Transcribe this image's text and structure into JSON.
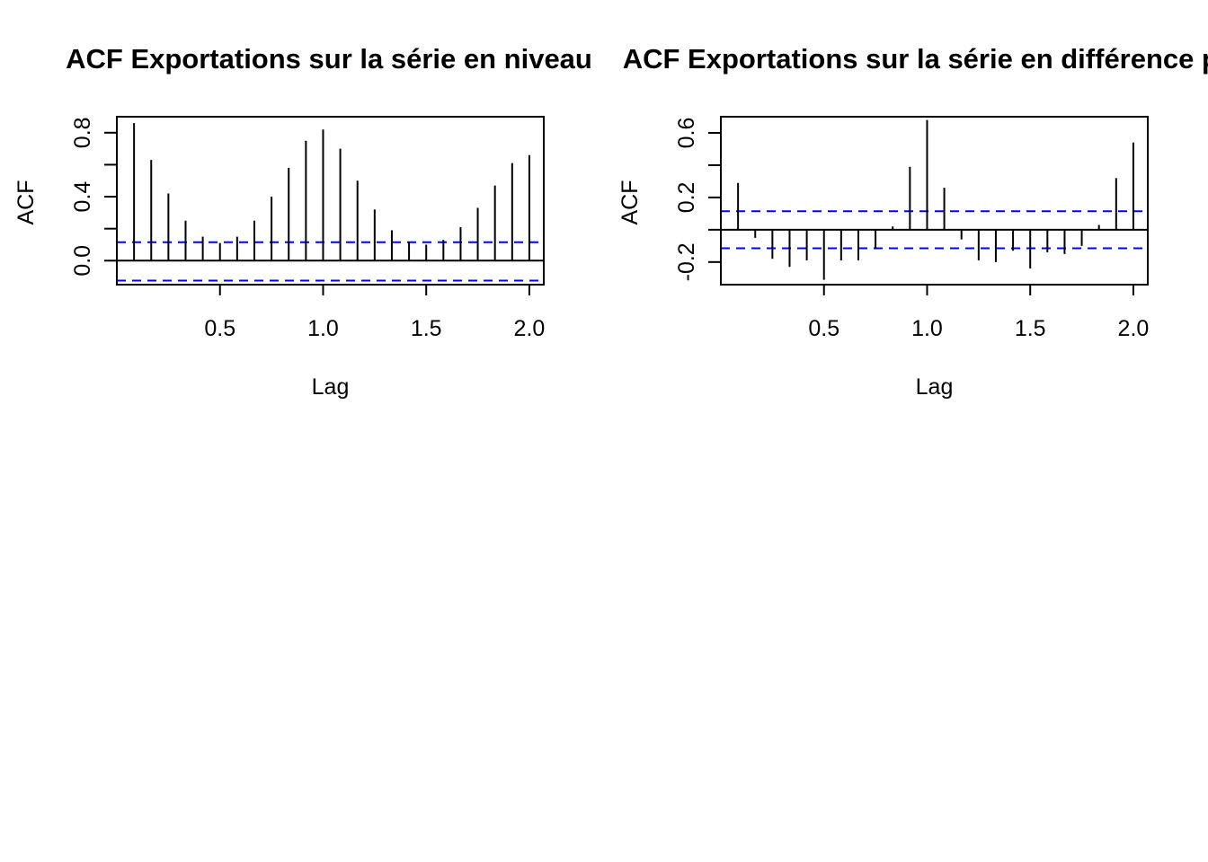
{
  "chart_data": [
    {
      "type": "bar",
      "subtype": "acf",
      "title": "ACF Exportations sur la série en niveau",
      "xlabel": "Lag",
      "ylabel": "ACF",
      "xlim": [
        0.0,
        2.07
      ],
      "ylim": [
        -0.15,
        0.9
      ],
      "x_ticks": [
        0.5,
        1.0,
        1.5,
        2.0
      ],
      "x_tick_labels": [
        "0.5",
        "1.0",
        "1.5",
        "2.0"
      ],
      "y_ticks": [
        0.0,
        0.2,
        0.4,
        0.6,
        0.8
      ],
      "y_tick_labels": [
        "0.0",
        "",
        "0.4",
        "",
        "0.8"
      ],
      "grid": false,
      "confidence_band": {
        "upper": 0.115,
        "lower": -0.125,
        "color": "#0000ff"
      },
      "lags": [
        0.0833,
        0.1667,
        0.25,
        0.3333,
        0.4167,
        0.5,
        0.5833,
        0.6667,
        0.75,
        0.8333,
        0.9167,
        1.0,
        1.0833,
        1.1667,
        1.25,
        1.3333,
        1.4167,
        1.5,
        1.5833,
        1.6667,
        1.75,
        1.8333,
        1.9167,
        2.0
      ],
      "values": [
        0.86,
        0.63,
        0.42,
        0.25,
        0.15,
        0.11,
        0.15,
        0.25,
        0.4,
        0.58,
        0.75,
        0.82,
        0.7,
        0.5,
        0.32,
        0.19,
        0.12,
        0.1,
        0.13,
        0.21,
        0.33,
        0.47,
        0.61,
        0.66
      ]
    },
    {
      "type": "bar",
      "subtype": "acf",
      "title": "ACF Exportations sur la série en différence pre",
      "xlabel": "Lag",
      "ylabel": "ACF",
      "xlim": [
        0.0,
        2.07
      ],
      "ylim": [
        -0.34,
        0.7
      ],
      "x_ticks": [
        0.5,
        1.0,
        1.5,
        2.0
      ],
      "x_tick_labels": [
        "0.5",
        "1.0",
        "1.5",
        "2.0"
      ],
      "y_ticks": [
        -0.2,
        0.0,
        0.2,
        0.4,
        0.6
      ],
      "y_tick_labels": [
        "-0.2",
        "",
        "0.2",
        "",
        "0.6"
      ],
      "grid": false,
      "confidence_band": {
        "upper": 0.115,
        "lower": -0.115,
        "color": "#0000ff"
      },
      "lags": [
        0.0833,
        0.1667,
        0.25,
        0.3333,
        0.4167,
        0.5,
        0.5833,
        0.6667,
        0.75,
        0.8333,
        0.9167,
        1.0,
        1.0833,
        1.1667,
        1.25,
        1.3333,
        1.4167,
        1.5,
        1.5833,
        1.6667,
        1.75,
        1.8333,
        1.9167,
        2.0
      ],
      "values": [
        0.29,
        -0.05,
        -0.18,
        -0.23,
        -0.19,
        -0.31,
        -0.19,
        -0.19,
        -0.12,
        0.02,
        0.39,
        0.68,
        0.26,
        -0.06,
        -0.19,
        -0.2,
        -0.13,
        -0.24,
        -0.14,
        -0.15,
        -0.1,
        0.03,
        0.32,
        0.54
      ]
    }
  ]
}
